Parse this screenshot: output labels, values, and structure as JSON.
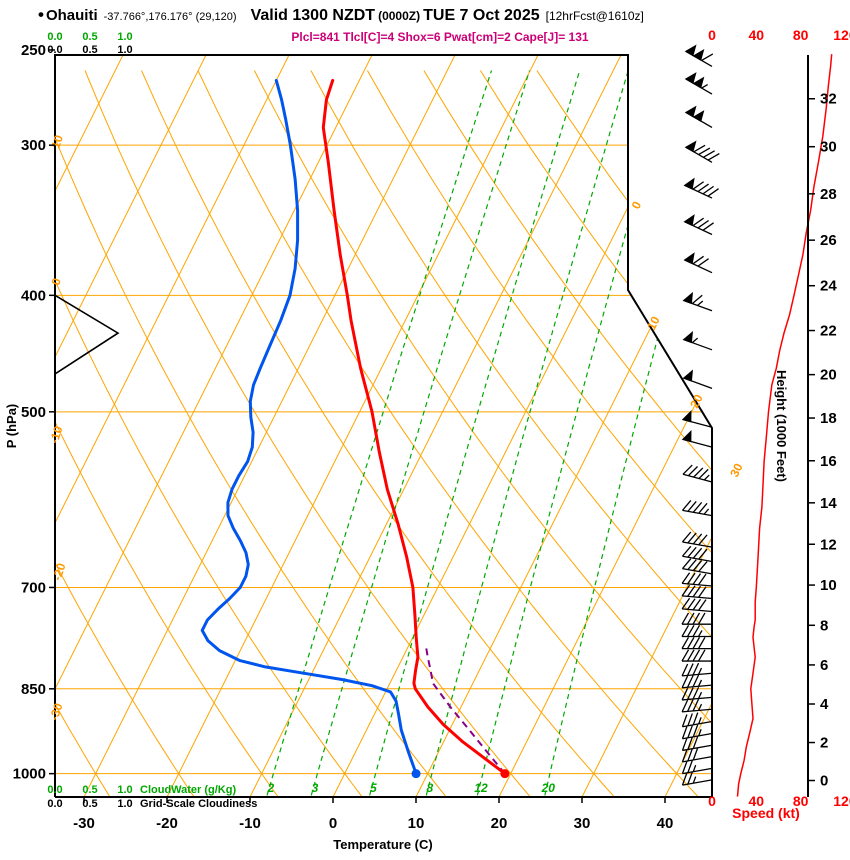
{
  "header": {
    "station": "Ohauiti",
    "coords": "-37.766°,176.176° (29,120)",
    "valid_prefix": "Valid 1300 NZDT",
    "valid_zulu": "(0000Z)",
    "valid_date": "TUE 7 Oct 2025",
    "fcst": "[12hrFcst@1610z]",
    "params": "Plcl=841 Tlcl[C]=4 Shox=6 Pwat[cm]=2 Cape[J]= 131"
  },
  "axes": {
    "pressure": {
      "label": "P (hPa)",
      "ticks": [
        250,
        300,
        400,
        500,
        700,
        850,
        1000
      ]
    },
    "temperature": {
      "label": "Temperature (C)",
      "ticks": [
        -30,
        -20,
        -10,
        0,
        10,
        20,
        30,
        40
      ]
    },
    "height": {
      "label": "Height (1000 Feet)",
      "ticks": [
        0,
        2,
        4,
        6,
        8,
        10,
        12,
        14,
        16,
        18,
        20,
        22,
        24,
        26,
        28,
        30,
        32
      ]
    },
    "speed": {
      "label": "Speed (kt)",
      "ticks": [
        0,
        40,
        80,
        120
      ]
    },
    "cloudwater": {
      "label": "CloudWater (g/Kg)",
      "ticks": [
        "0.0",
        "0.5",
        "1.0"
      ]
    },
    "cloudiness": {
      "label": "Grid-Scale Cloudiness",
      "ticks": [
        "0.0",
        "0.5",
        "1.0"
      ]
    }
  },
  "colors": {
    "grid": "#ffa500",
    "grid_label": "#ff9900",
    "mixing_ratio": "#00a800",
    "temperature": "#ff0000",
    "dewpoint": "#0055ee",
    "parcel": "#880088",
    "speed": "#ff0000",
    "cloudiness": "#000000",
    "params_text": "#cc0077",
    "frame": "#000000"
  },
  "chart_data": {
    "type": "skewt-sounding",
    "pressure_range_hpa": [
      250,
      1050
    ],
    "temp_axis_range_c": [
      -35,
      45
    ],
    "isotherm_step_c": 10,
    "dry_adiabat_step_c": 10,
    "mixing_ratio_lines_gkg": [
      2,
      3,
      5,
      8,
      12,
      20
    ],
    "adiabat_edge_labels": [
      [
        10,
        61,
        143
      ],
      [
        0,
        60,
        283
      ],
      [
        -10,
        60,
        436
      ],
      [
        -20,
        63,
        573
      ],
      [
        -30,
        60,
        713
      ]
    ],
    "isotherm_edge_labels": [
      [
        0,
        640,
        207
      ],
      [
        10,
        657,
        325
      ],
      [
        20,
        700,
        403
      ],
      [
        30,
        740,
        472
      ]
    ],
    "surface": {
      "pressure_hpa": 1000,
      "temp_c": 19.3,
      "dewpoint_c": 8.6
    },
    "temperature_profile": [
      [
        1000,
        19.3
      ],
      [
        970,
        15.8
      ],
      [
        940,
        12.2
      ],
      [
        910,
        8.9
      ],
      [
        880,
        6.0
      ],
      [
        850,
        3.4
      ],
      [
        841,
        2.9
      ],
      [
        820,
        2.3
      ],
      [
        800,
        1.8
      ],
      [
        770,
        0.4
      ],
      [
        740,
        -1.0
      ],
      [
        700,
        -3.0
      ],
      [
        660,
        -5.6
      ],
      [
        620,
        -8.6
      ],
      [
        580,
        -12.0
      ],
      [
        540,
        -15.2
      ],
      [
        500,
        -18.5
      ],
      [
        460,
        -22.5
      ],
      [
        420,
        -26.5
      ],
      [
        400,
        -28.5
      ],
      [
        370,
        -31.8
      ],
      [
        340,
        -35.2
      ],
      [
        310,
        -38.8
      ],
      [
        290,
        -41.5
      ],
      [
        275,
        -42.8
      ],
      [
        265,
        -43.2
      ]
    ],
    "dewpoint_profile": [
      [
        1000,
        8.6
      ],
      [
        960,
        6.4
      ],
      [
        920,
        4.2
      ],
      [
        890,
        2.8
      ],
      [
        870,
        1.8
      ],
      [
        855,
        0.6
      ],
      [
        845,
        -2.0
      ],
      [
        835,
        -6.0
      ],
      [
        825,
        -11.0
      ],
      [
        815,
        -16.0
      ],
      [
        805,
        -19.5
      ],
      [
        790,
        -22.5
      ],
      [
        775,
        -24.5
      ],
      [
        760,
        -25.8
      ],
      [
        745,
        -25.8
      ],
      [
        730,
        -25.2
      ],
      [
        715,
        -24.4
      ],
      [
        700,
        -23.8
      ],
      [
        685,
        -23.8
      ],
      [
        670,
        -24.2
      ],
      [
        655,
        -25.2
      ],
      [
        640,
        -26.6
      ],
      [
        625,
        -28.2
      ],
      [
        610,
        -29.6
      ],
      [
        595,
        -30.4
      ],
      [
        580,
        -30.7
      ],
      [
        565,
        -30.7
      ],
      [
        550,
        -30.5
      ],
      [
        535,
        -30.8
      ],
      [
        520,
        -31.6
      ],
      [
        505,
        -32.8
      ],
      [
        490,
        -33.8
      ],
      [
        475,
        -34.4
      ],
      [
        460,
        -34.6
      ],
      [
        440,
        -34.8
      ],
      [
        420,
        -35.0
      ],
      [
        400,
        -35.4
      ],
      [
        380,
        -36.4
      ],
      [
        360,
        -37.8
      ],
      [
        340,
        -39.6
      ],
      [
        320,
        -41.8
      ],
      [
        300,
        -44.4
      ],
      [
        285,
        -46.6
      ],
      [
        275,
        -48.2
      ],
      [
        265,
        -50.0
      ]
    ],
    "parcel_path": [
      [
        1000,
        19.3
      ],
      [
        960,
        15.9
      ],
      [
        920,
        12.4
      ],
      [
        880,
        8.7
      ],
      [
        841,
        5.2
      ],
      [
        820,
        4.1
      ],
      [
        800,
        3.0
      ],
      [
        785,
        2.2
      ]
    ],
    "wind_barbs": [
      [
        258,
        108,
        300
      ],
      [
        272,
        104,
        300
      ],
      [
        290,
        99,
        300
      ],
      [
        310,
        94,
        300
      ],
      [
        332,
        88,
        295
      ],
      [
        356,
        80,
        295
      ],
      [
        383,
        72,
        295
      ],
      [
        412,
        63,
        290
      ],
      [
        444,
        56,
        290
      ],
      [
        478,
        52,
        290
      ],
      [
        515,
        49,
        285
      ],
      [
        535,
        48,
        285
      ],
      [
        572,
        47,
        285
      ],
      [
        610,
        45,
        280
      ],
      [
        648,
        42,
        280
      ],
      [
        666,
        41,
        280
      ],
      [
        682,
        41,
        280
      ],
      [
        698,
        40,
        275
      ],
      [
        715,
        39,
        275
      ],
      [
        733,
        39,
        275
      ],
      [
        751,
        38,
        270
      ],
      [
        769,
        37,
        270
      ],
      [
        787,
        38,
        270
      ],
      [
        806,
        39,
        270
      ],
      [
        825,
        37,
        265
      ],
      [
        844,
        35,
        265
      ],
      [
        864,
        36,
        265
      ],
      [
        884,
        37,
        265
      ],
      [
        905,
        36,
        260
      ],
      [
        926,
        34,
        260
      ],
      [
        947,
        31,
        260
      ],
      [
        968,
        29,
        260
      ],
      [
        990,
        27,
        260
      ],
      [
        1012,
        25,
        260
      ]
    ],
    "speed_profile": [
      [
        1045,
        23
      ],
      [
        1020,
        24
      ],
      [
        1000,
        26
      ],
      [
        975,
        29
      ],
      [
        950,
        31
      ],
      [
        925,
        34
      ],
      [
        900,
        37
      ],
      [
        875,
        36
      ],
      [
        850,
        35
      ],
      [
        825,
        37
      ],
      [
        800,
        39
      ],
      [
        785,
        38
      ],
      [
        770,
        37
      ],
      [
        755,
        38
      ],
      [
        745,
        39
      ],
      [
        720,
        39
      ],
      [
        700,
        40
      ],
      [
        675,
        41
      ],
      [
        650,
        42
      ],
      [
        625,
        43
      ],
      [
        600,
        45
      ],
      [
        575,
        46
      ],
      [
        550,
        47
      ],
      [
        525,
        49
      ],
      [
        500,
        51
      ],
      [
        475,
        54
      ],
      [
        460,
        58
      ],
      [
        445,
        61
      ],
      [
        430,
        65
      ],
      [
        415,
        70
      ],
      [
        400,
        74
      ],
      [
        385,
        78
      ],
      [
        370,
        82
      ],
      [
        355,
        85
      ],
      [
        340,
        89
      ],
      [
        325,
        92
      ],
      [
        310,
        96
      ],
      [
        295,
        100
      ],
      [
        280,
        103
      ],
      [
        268,
        105
      ],
      [
        258,
        107
      ],
      [
        252,
        108
      ]
    ],
    "cloudiness_profile": [
      [
        400,
        0
      ],
      [
        430,
        0.9
      ],
      [
        465,
        0
      ]
    ]
  }
}
